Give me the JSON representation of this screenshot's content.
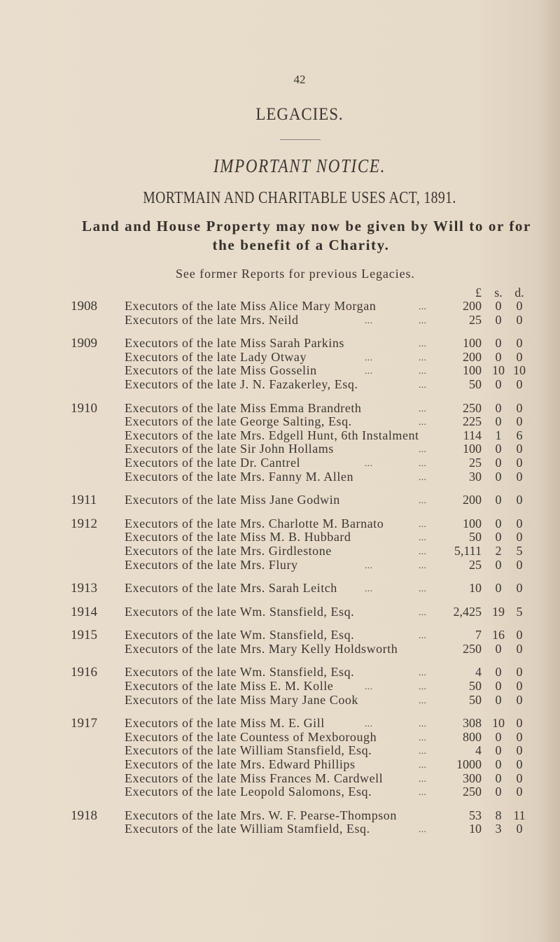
{
  "page_number": "42",
  "title": "LEGACIES.",
  "notice": "IMPORTANT NOTICE.",
  "act": "MORTMAIN AND CHARITABLE USES ACT, 1891.",
  "intro_line1": "Land and House Property may now be given by Will to or for",
  "intro_line2": "the benefit of a Charity.",
  "see_former": "See former Reports for previous Legacies.",
  "columns": {
    "pounds": "£",
    "shillings": "s.",
    "pence": "d."
  },
  "groups": [
    {
      "year": "1908",
      "entries": [
        {
          "text": "Executors of the late Miss Alice Mary Morgan",
          "mid": "",
          "end": "...",
          "l": "200",
          "s": "0",
          "d": "0"
        },
        {
          "text": "Executors of the late Mrs. Neild",
          "mid": "...",
          "end": "...",
          "l": "25",
          "s": "0",
          "d": "0"
        }
      ]
    },
    {
      "year": "1909",
      "entries": [
        {
          "text": "Executors of the late Miss Sarah Parkins",
          "mid": "",
          "end": "...",
          "l": "100",
          "s": "0",
          "d": "0"
        },
        {
          "text": "Executors of the late Lady Otway",
          "mid": "...",
          "end": "...",
          "l": "200",
          "s": "0",
          "d": "0"
        },
        {
          "text": "Executors of the late Miss Gosselin",
          "mid": "...",
          "end": "...",
          "l": "100",
          "s": "10",
          "d": "10"
        },
        {
          "text": "Executors of the late J. N. Fazakerley, Esq.",
          "mid": "",
          "end": "...",
          "l": "50",
          "s": "0",
          "d": "0"
        }
      ]
    },
    {
      "year": "1910",
      "entries": [
        {
          "text": "Executors of the late Miss Emma Brandreth",
          "mid": "",
          "end": "...",
          "l": "250",
          "s": "0",
          "d": "0"
        },
        {
          "text": "Executors of the late George Salting, Esq.",
          "mid": "",
          "end": "...",
          "l": "225",
          "s": "0",
          "d": "0"
        },
        {
          "text": "Executors of the late Mrs. Edgell Hunt, 6th Instalment",
          "mid": "",
          "end": "",
          "l": "114",
          "s": "1",
          "d": "6"
        },
        {
          "text": "Executors of the late Sir John Hollams",
          "mid": "",
          "end": "...",
          "l": "100",
          "s": "0",
          "d": "0"
        },
        {
          "text": "Executors of the late Dr. Cantrel",
          "mid": "...",
          "end": "...",
          "l": "25",
          "s": "0",
          "d": "0"
        },
        {
          "text": "Executors of the late Mrs. Fanny M. Allen",
          "mid": "",
          "end": "...",
          "l": "30",
          "s": "0",
          "d": "0"
        }
      ]
    },
    {
      "year": "1911",
      "entries": [
        {
          "text": "Executors of the late Miss Jane Godwin",
          "mid": "",
          "end": "...",
          "l": "200",
          "s": "0",
          "d": "0"
        }
      ]
    },
    {
      "year": "1912",
      "entries": [
        {
          "text": "Executors of the late Mrs. Charlotte M. Barnato",
          "mid": "",
          "end": "...",
          "l": "100",
          "s": "0",
          "d": "0"
        },
        {
          "text": "Executors of the late Miss M. B. Hubbard",
          "mid": "",
          "end": "...",
          "l": "50",
          "s": "0",
          "d": "0"
        },
        {
          "text": "Executors of the late Mrs. Girdlestone",
          "mid": "",
          "end": "...",
          "l": "5,111",
          "s": "2",
          "d": "5"
        },
        {
          "text": "Executors of the late Mrs. Flury",
          "mid": "...",
          "end": "...",
          "l": "25",
          "s": "0",
          "d": "0"
        }
      ]
    },
    {
      "year": "1913",
      "entries": [
        {
          "text": "Executors of the late Mrs. Sarah Leitch",
          "mid": "...",
          "end": "...",
          "l": "10",
          "s": "0",
          "d": "0"
        }
      ]
    },
    {
      "year": "1914",
      "entries": [
        {
          "text": "Executors of the late Wm. Stansfield, Esq.",
          "mid": "",
          "end": "...",
          "l": "2,425",
          "s": "19",
          "d": "5"
        }
      ]
    },
    {
      "year": "1915",
      "entries": [
        {
          "text": "Executors of the late Wm. Stansfield, Esq.",
          "mid": "",
          "end": "...",
          "l": "7",
          "s": "16",
          "d": "0"
        },
        {
          "text": "Executors of the late Mrs. Mary Kelly Holdsworth",
          "mid": "",
          "end": "",
          "l": "250",
          "s": "0",
          "d": "0"
        }
      ]
    },
    {
      "year": "1916",
      "entries": [
        {
          "text": "Executors of the late Wm. Stansfield, Esq.",
          "mid": "",
          "end": "...",
          "l": "4",
          "s": "0",
          "d": "0"
        },
        {
          "text": "Executors of the late Miss E. M. Kolle",
          "mid": "...",
          "end": "...",
          "l": "50",
          "s": "0",
          "d": "0"
        },
        {
          "text": "Executors of the late Miss Mary Jane Cook",
          "mid": "",
          "end": "...",
          "l": "50",
          "s": "0",
          "d": "0"
        }
      ]
    },
    {
      "year": "1917",
      "entries": [
        {
          "text": "Executors of the late Miss M. E. Gill",
          "mid": "...",
          "end": "...",
          "l": "308",
          "s": "10",
          "d": "0"
        },
        {
          "text": "Executors of the late Countess of Mexborough",
          "mid": "",
          "end": "...",
          "l": "800",
          "s": "0",
          "d": "0"
        },
        {
          "text": "Executors of the late William Stansfield, Esq.",
          "mid": "",
          "end": "...",
          "l": "4",
          "s": "0",
          "d": "0"
        },
        {
          "text": "Executors of the late Mrs. Edward Phillips",
          "mid": "",
          "end": "...",
          "l": "1000",
          "s": "0",
          "d": "0"
        },
        {
          "text": "Executors of the late Miss Frances M. Cardwell",
          "mid": "",
          "end": "...",
          "l": "300",
          "s": "0",
          "d": "0"
        },
        {
          "text": "Executors of the late Leopold Salomons, Esq.",
          "mid": "",
          "end": "...",
          "l": "250",
          "s": "0",
          "d": "0"
        }
      ]
    },
    {
      "year": "1918",
      "entries": [
        {
          "text": "Executors of the late Mrs. W. F. Pearse-Thompson",
          "mid": "",
          "end": "",
          "l": "53",
          "s": "8",
          "d": "11"
        },
        {
          "text": "Executors of the late William Stamfield, Esq.",
          "mid": "",
          "end": "...",
          "l": "10",
          "s": "3",
          "d": "0"
        }
      ]
    }
  ]
}
